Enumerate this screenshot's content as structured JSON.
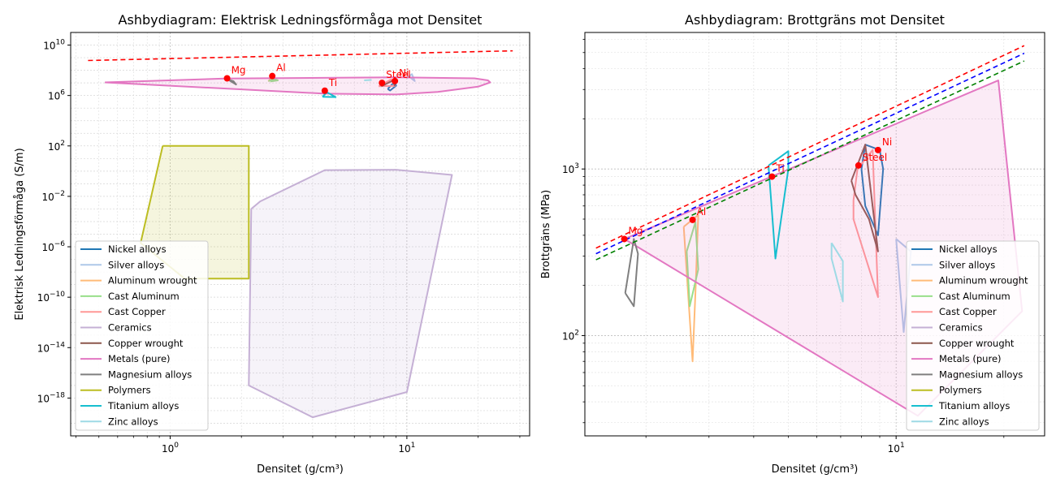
{
  "chart_data": [
    {
      "type": "scatter",
      "title": "Ashbydiagram: Elektrisk Ledningsförmåga mot Densitet",
      "xlabel": "Densitet (g/cm³)",
      "ylabel": "Elektrisk Ledningsförmåga (S/m)",
      "xscale": "log",
      "yscale": "log",
      "xlim": [
        0.38,
        33
      ],
      "ylim": [
        1e-21,
        100000000000.0
      ],
      "x_ticks": [
        {
          "value": 1,
          "base": "10",
          "exp": "0"
        },
        {
          "value": 10,
          "base": "10",
          "exp": "1"
        }
      ],
      "y_ticks": [
        {
          "value": 10000000000.0,
          "base": "10",
          "exp": "10"
        },
        {
          "value": 1000000.0,
          "base": "10",
          "exp": "6"
        },
        {
          "value": 100,
          "base": "10",
          "exp": "2"
        },
        {
          "value": 0.01,
          "base": "10",
          "exp": "−2"
        },
        {
          "value": 1e-06,
          "base": "10",
          "exp": "−6"
        },
        {
          "value": 1e-10,
          "base": "10",
          "exp": "−10"
        },
        {
          "value": 1e-14,
          "base": "10",
          "exp": "−14"
        },
        {
          "value": 1e-18,
          "base": "10",
          "exp": "−18"
        }
      ],
      "grid": true,
      "legend_position": "lower-left",
      "series": [
        {
          "name": "Nickel alloys",
          "color": "#1f77b4",
          "fill": false,
          "points": [
            [
              8.3,
              3300000.0
            ],
            [
              8.9,
              13000000.0
            ],
            [
              9.0,
              6000000.0
            ],
            [
              8.5,
              2500000.0
            ],
            [
              8.3,
              3300000.0
            ]
          ]
        },
        {
          "name": "Silver alloys",
          "color": "#aec7e8",
          "fill": false,
          "points": [
            [
              10.0,
              24000000.0
            ],
            [
              10.5,
              50000000.0
            ],
            [
              10.8,
              14000000.0
            ],
            [
              10.3,
              28000000.0
            ]
          ]
        },
        {
          "name": "Aluminum wrought",
          "color": "#ffbb78",
          "fill": false,
          "points": [
            [
              2.6,
              13000000.0
            ],
            [
              2.7,
              36000000.0
            ],
            [
              2.8,
              14000000.0
            ]
          ]
        },
        {
          "name": "Cast Aluminum",
          "color": "#98df8a",
          "fill": false,
          "points": [
            [
              2.6,
              14000000.0
            ],
            [
              2.75,
              20000000.0
            ],
            [
              2.85,
              16000000.0
            ],
            [
              2.65,
              13000000.0
            ]
          ]
        },
        {
          "name": "Cast Copper",
          "color": "#ff9896",
          "fill": false,
          "points": [
            [
              7.6,
              5500000.0
            ],
            [
              8.6,
              19000000.0
            ],
            [
              8.9,
              5800000.0
            ],
            [
              7.6,
              5500000.0
            ]
          ]
        },
        {
          "name": "Ceramics",
          "color": "#c5b0d5",
          "fill": true,
          "points": [
            [
              2.2,
              0.001
            ],
            [
              2.4,
              0.004
            ],
            [
              4.5,
              1.2
            ],
            [
              9.0,
              1.3
            ],
            [
              15.5,
              0.5
            ],
            [
              10.0,
              3e-18
            ],
            [
              4.0,
              3e-20
            ],
            [
              2.15,
              1e-17
            ],
            [
              2.2,
              0.001
            ]
          ]
        },
        {
          "name": "Copper wrought",
          "color": "#8c564b",
          "fill": false,
          "points": [
            [
              7.8,
              5300000.0
            ],
            [
              8.7,
              15000000.0
            ],
            [
              8.9,
              5800000.0
            ]
          ]
        },
        {
          "name": "Metals (pure)",
          "color": "#e377c2",
          "fill": true,
          "points": [
            [
              0.53,
              11000000.0
            ],
            [
              1.7,
              22000000.0
            ],
            [
              5.0,
              26000000.0
            ],
            [
              9.0,
              28000000.0
            ],
            [
              19.3,
              23000000.0
            ],
            [
              22.0,
              16000000.0
            ],
            [
              22.5,
              11000000.0
            ],
            [
              20.0,
              5000000.0
            ],
            [
              13.5,
              1900000.0
            ],
            [
              9.0,
              1200000.0
            ],
            [
              4.5,
              1400000.0
            ],
            [
              0.53,
              11000000.0
            ]
          ]
        },
        {
          "name": "Magnesium alloys",
          "color": "#7f7f7f",
          "fill": false,
          "points": [
            [
              1.75,
              19000000.0
            ],
            [
              1.85,
              14000000.0
            ],
            [
              1.9,
              7500000.0
            ],
            [
              1.82,
              12000000.0
            ],
            [
              1.75,
              19000000.0
            ]
          ]
        },
        {
          "name": "Polymers",
          "color": "#bcbd22",
          "fill": true,
          "points": [
            [
              0.93,
              100.0
            ],
            [
              2.15,
              100.0
            ],
            [
              2.15,
              3e-09
            ],
            [
              1.15,
              3e-09
            ],
            [
              0.75,
              2e-06
            ],
            [
              0.93,
              100.0
            ]
          ]
        },
        {
          "name": "Titanium alloys",
          "color": "#17becf",
          "fill": false,
          "points": [
            [
              4.4,
              800000.0
            ],
            [
              4.6,
              1800000.0
            ],
            [
              5.0,
              750000.0
            ],
            [
              4.4,
              800000.0
            ]
          ]
        },
        {
          "name": "Zinc alloys",
          "color": "#9edae5",
          "fill": false,
          "points": [
            [
              6.6,
              16000000.0
            ],
            [
              7.1,
              17000000.0
            ]
          ]
        }
      ],
      "pure_metals": [
        {
          "label": "Mg",
          "x": 1.74,
          "y": 23000000.0
        },
        {
          "label": "Al",
          "x": 2.7,
          "y": 35000000.0
        },
        {
          "label": "Ti",
          "x": 4.5,
          "y": 2400000.0
        },
        {
          "label": "Steel",
          "x": 7.85,
          "y": 10000000.0
        },
        {
          "label": "Ni",
          "x": 8.9,
          "y": 14000000.0
        }
      ],
      "guide_lines": [
        {
          "color": "#ff0000",
          "from": [
            0.45,
            600000000.0
          ],
          "to": [
            28.0,
            3500000000.0
          ]
        }
      ]
    },
    {
      "type": "scatter",
      "title": "Ashbydiagram: Brottgräns mot Densitet",
      "xlabel": "Densitet (g/cm³)",
      "ylabel": "Brottgräns (MPa)",
      "xscale": "log",
      "yscale": "log",
      "xlim": [
        1.35,
        26
      ],
      "ylim": [
        25,
        6600
      ],
      "x_ticks": [
        {
          "value": 10,
          "base": "10",
          "exp": "1"
        }
      ],
      "y_ticks": [
        {
          "value": 100,
          "base": "10",
          "exp": "2"
        },
        {
          "value": 1000,
          "base": "10",
          "exp": "3"
        }
      ],
      "grid": true,
      "legend_position": "lower-right",
      "series": [
        {
          "name": "Nickel alloys",
          "color": "#1f77b4",
          "fill": false,
          "points": [
            [
              8.0,
              1000
            ],
            [
              8.2,
              1400
            ],
            [
              9.0,
              1300
            ],
            [
              9.2,
              1000
            ],
            [
              8.9,
              400
            ],
            [
              8.2,
              600
            ],
            [
              8.0,
              1000
            ]
          ]
        },
        {
          "name": "Silver alloys",
          "color": "#aec7e8",
          "fill": false,
          "points": [
            [
              10.0,
              380
            ],
            [
              11.0,
              320
            ],
            [
              10.5,
              105
            ],
            [
              10.0,
              380
            ]
          ]
        },
        {
          "name": "Aluminum wrought",
          "color": "#ffbb78",
          "fill": false,
          "points": [
            [
              2.55,
              450
            ],
            [
              2.8,
              530
            ],
            [
              2.75,
              180
            ],
            [
              2.7,
              70
            ],
            [
              2.55,
              450
            ]
          ]
        },
        {
          "name": "Cast Aluminum",
          "color": "#98df8a",
          "fill": false,
          "points": [
            [
              2.6,
              320
            ],
            [
              2.75,
              480
            ],
            [
              2.8,
              250
            ],
            [
              2.65,
              150
            ],
            [
              2.6,
              320
            ]
          ]
        },
        {
          "name": "Cast Copper",
          "color": "#ff9896",
          "fill": false,
          "points": [
            [
              7.6,
              650
            ],
            [
              7.8,
              1000
            ],
            [
              8.6,
              1300
            ],
            [
              8.9,
              170
            ],
            [
              7.6,
              500
            ],
            [
              7.6,
              650
            ]
          ]
        },
        {
          "name": "Ceramics",
          "color": "#c5b0d5",
          "fill": false,
          "points": []
        },
        {
          "name": "Copper wrought",
          "color": "#8c564b",
          "fill": false,
          "points": [
            [
              7.5,
              850
            ],
            [
              8.2,
              1400
            ],
            [
              8.9,
              320
            ],
            [
              8.4,
              500
            ],
            [
              7.7,
              700
            ],
            [
              7.5,
              850
            ]
          ]
        },
        {
          "name": "Metals (pure)",
          "color": "#e377c2",
          "fill": true,
          "points": [
            [
              1.74,
              380
            ],
            [
              19.3,
              3400
            ],
            [
              22.5,
              140
            ],
            [
              11.5,
              33
            ],
            [
              1.74,
              380
            ]
          ]
        },
        {
          "name": "Magnesium alloys",
          "color": "#7f7f7f",
          "fill": false,
          "points": [
            [
              1.75,
              180
            ],
            [
              1.85,
              380
            ],
            [
              1.9,
              310
            ],
            [
              1.85,
              150
            ],
            [
              1.75,
              180
            ]
          ]
        },
        {
          "name": "Polymers",
          "color": "#bcbd22",
          "fill": false,
          "points": []
        },
        {
          "name": "Titanium alloys",
          "color": "#17becf",
          "fill": false,
          "points": [
            [
              4.4,
              1050
            ],
            [
              4.6,
              290
            ],
            [
              5.0,
              1000
            ],
            [
              5.0,
              1280
            ],
            [
              4.4,
              1050
            ]
          ]
        },
        {
          "name": "Zinc alloys",
          "color": "#9edae5",
          "fill": false,
          "points": [
            [
              6.6,
              360
            ],
            [
              7.1,
              280
            ],
            [
              7.1,
              160
            ],
            [
              6.6,
              290
            ],
            [
              6.6,
              360
            ]
          ]
        }
      ],
      "pure_metals": [
        {
          "label": "Mg",
          "x": 1.74,
          "y": 380
        },
        {
          "label": "Al",
          "x": 2.7,
          "y": 495
        },
        {
          "label": "Ti",
          "x": 4.5,
          "y": 900
        },
        {
          "label": "Steel",
          "x": 7.85,
          "y": 1050
        },
        {
          "label": "Ni",
          "x": 8.9,
          "y": 1300
        }
      ],
      "guide_lines": [
        {
          "color": "#ff0000",
          "from": [
            1.45,
            335
          ],
          "to": [
            22.8,
            5500
          ]
        },
        {
          "color": "#0000ff",
          "from": [
            1.45,
            310
          ],
          "to": [
            22.8,
            4950
          ]
        },
        {
          "color": "#008000",
          "from": [
            1.45,
            285
          ],
          "to": [
            22.8,
            4450
          ]
        }
      ]
    }
  ]
}
